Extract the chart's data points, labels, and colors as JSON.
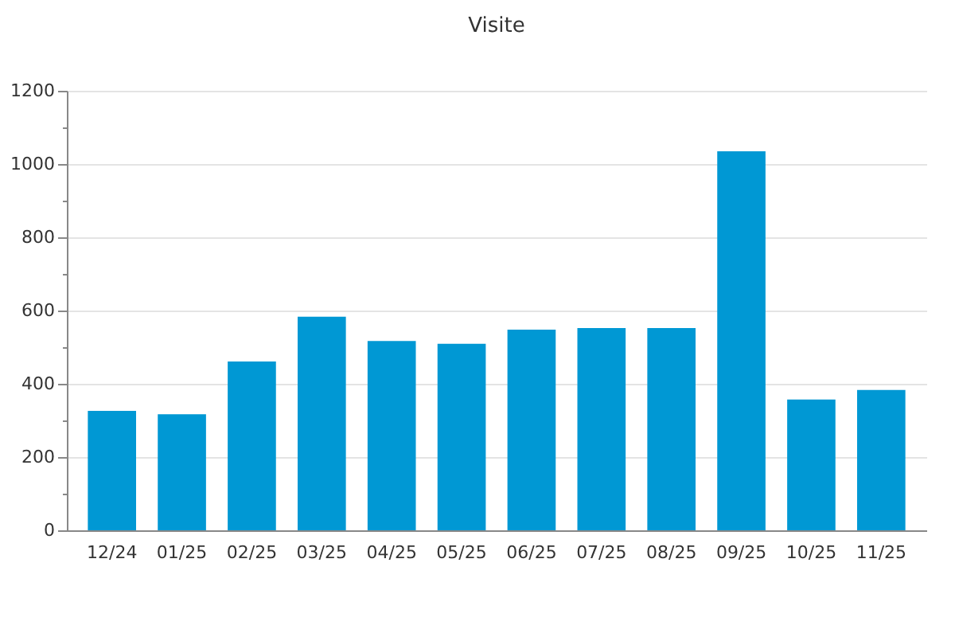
{
  "chart_data": {
    "type": "bar",
    "title": "Visite",
    "categories": [
      "12/24",
      "01/25",
      "02/25",
      "03/25",
      "04/25",
      "05/25",
      "06/25",
      "07/25",
      "08/25",
      "09/25",
      "10/25",
      "11/25"
    ],
    "values": [
      326,
      317,
      461,
      583,
      517,
      509,
      548,
      552,
      552,
      1035,
      357,
      383
    ],
    "color": "#0098d4",
    "ylim": [
      0,
      1200
    ],
    "yticks": [
      0,
      {
        "value": 100,
        "label": null
      },
      200,
      {
        "value": 300,
        "label": null
      },
      400,
      {
        "value": 500,
        "label": null
      },
      600,
      {
        "value": 700,
        "label": null
      },
      800,
      {
        "value": 900,
        "label": null
      },
      1000,
      {
        "value": 1100,
        "label": null
      },
      1200
    ],
    "grid": "y"
  }
}
